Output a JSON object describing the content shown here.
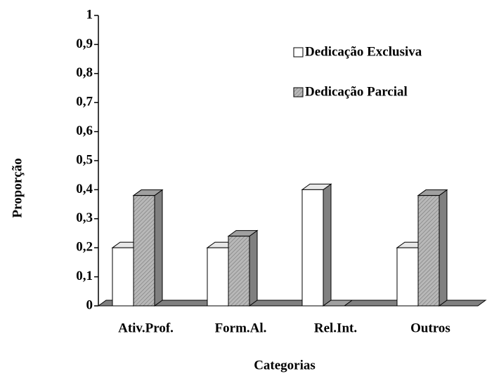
{
  "chart_data": {
    "type": "bar3d",
    "categories": [
      "Ativ.Prof.",
      "Form.Al.",
      "Rel.Int.",
      "Outros"
    ],
    "series": [
      {
        "name": "Dedicação Exclusiva",
        "color": "#ffffff",
        "values": [
          0.2,
          0.2,
          0.4,
          0.2
        ]
      },
      {
        "name": "Dedicação Parcial",
        "color": "#b8b8b8",
        "values": [
          0.38,
          0.24,
          0,
          0.38
        ]
      }
    ],
    "ylim": [
      0,
      1
    ],
    "yticks": [
      0,
      {
        "value": 0.1,
        "label": "0,1"
      },
      {
        "value": 0.2,
        "label": "0,2"
      },
      {
        "value": 0.3,
        "label": "0,3"
      },
      {
        "value": 0.4,
        "label": "0,4"
      },
      {
        "value": 0.5,
        "label": "0,5"
      },
      {
        "value": 0.6,
        "label": "0,6"
      },
      {
        "value": 0.7,
        "label": "0,7"
      },
      {
        "value": 0.8,
        "label": "0,8"
      },
      {
        "value": 0.9,
        "label": "0,9"
      },
      1
    ],
    "xlabel": "Categorias",
    "ylabel": "Proporção"
  }
}
